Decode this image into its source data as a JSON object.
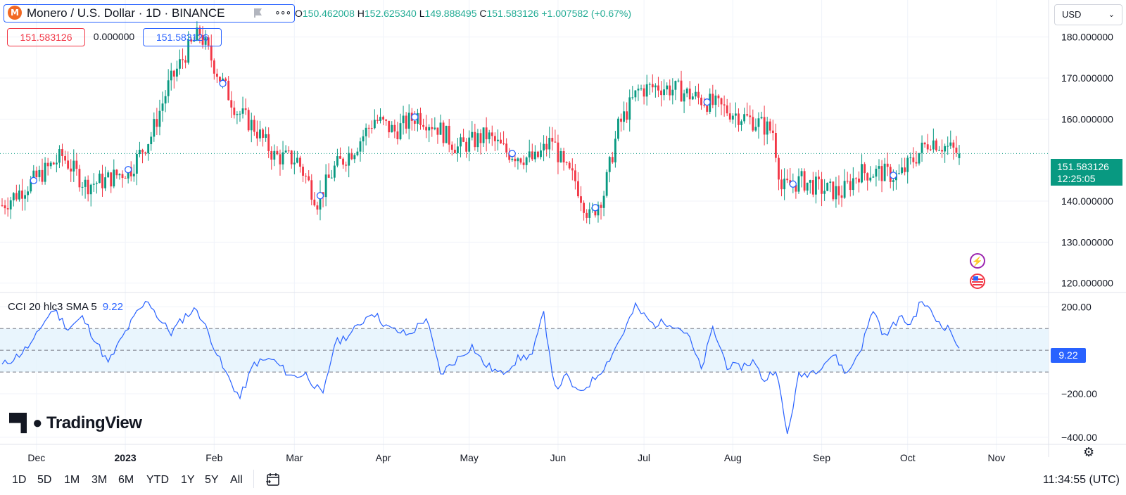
{
  "symbol": {
    "logo_letter": "M",
    "title": "Monero / U.S. Dollar · 1D · BINANCE",
    "open_label": "O",
    "open": "150.462008",
    "high_label": "H",
    "high": "152.625340",
    "low_label": "L",
    "low": "149.888495",
    "close_label": "C",
    "close": "151.583126",
    "change": "+1.007582 (+0.67%)"
  },
  "pills": {
    "sell": "151.583126",
    "spread": "0.000000",
    "buy": "151.583126"
  },
  "currency": {
    "label": "USD"
  },
  "last_price": {
    "price": "151.583126",
    "countdown": "12:25:05"
  },
  "indicator": {
    "name": "CCI 20 hlc3 SMA 5",
    "value": "9.22"
  },
  "logo_text": "TradingView",
  "ranges": [
    "1D",
    "5D",
    "1M",
    "3M",
    "6M",
    "YTD",
    "1Y",
    "5Y",
    "All"
  ],
  "clock": "11:34:55 (UTC)",
  "colors": {
    "up": "#089981",
    "down": "#f23645",
    "cci_line": "#2962ff",
    "cci_band": "#e3f2fd"
  },
  "icons": [
    "flag-icon",
    "more-icon",
    "chevron-down-icon",
    "lightning-icon",
    "us-flag-icon",
    "gear-icon",
    "calendar-icon"
  ],
  "chart_data": [
    {
      "type": "candlestick",
      "title": "Monero / U.S. Dollar · 1D · BINANCE",
      "y_ticks": [
        180,
        170,
        160,
        140,
        130,
        120
      ],
      "y_tick_labels": [
        "180.000000",
        "170.000000",
        "160.000000",
        "140.000000",
        "130.000000",
        "120.000000"
      ],
      "ylim": [
        118.4,
        188.0
      ],
      "x_ticks": [
        "Dec",
        "2023",
        "Feb",
        "Mar",
        "Apr",
        "May",
        "Jun",
        "Jul",
        "Aug",
        "Sep",
        "Oct",
        "Nov"
      ],
      "last_price_line": 151.583126,
      "anchors": [
        [
          "2022-11-19",
          139
        ],
        [
          "2022-11-30",
          145
        ],
        [
          "2022-12-10",
          151
        ],
        [
          "2022-12-18",
          144
        ],
        [
          "2022-12-25",
          145
        ],
        [
          "2023-01-03",
          148
        ],
        [
          "2023-01-10",
          156
        ],
        [
          "2023-01-16",
          168
        ],
        [
          "2023-01-22",
          176
        ],
        [
          "2023-01-27",
          181
        ],
        [
          "2023-02-03",
          170
        ],
        [
          "2023-02-09",
          162
        ],
        [
          "2023-02-15",
          158
        ],
        [
          "2023-02-22",
          151
        ],
        [
          "2023-03-02",
          150
        ],
        [
          "2023-03-09",
          140
        ],
        [
          "2023-03-15",
          148
        ],
        [
          "2023-03-22",
          153
        ],
        [
          "2023-03-29",
          160
        ],
        [
          "2023-04-05",
          157
        ],
        [
          "2023-04-13",
          161
        ],
        [
          "2023-04-20",
          158
        ],
        [
          "2023-04-27",
          153
        ],
        [
          "2023-05-07",
          156
        ],
        [
          "2023-05-14",
          152
        ],
        [
          "2023-05-24",
          150
        ],
        [
          "2023-05-30",
          155
        ],
        [
          "2023-06-03",
          148
        ],
        [
          "2023-06-07",
          145
        ],
        [
          "2023-06-12",
          136
        ],
        [
          "2023-06-17",
          142
        ],
        [
          "2023-06-22",
          158
        ],
        [
          "2023-06-29",
          167
        ],
        [
          "2023-07-06",
          168
        ],
        [
          "2023-07-13",
          167
        ],
        [
          "2023-07-20",
          165
        ],
        [
          "2023-07-27",
          163
        ],
        [
          "2023-08-03",
          161
        ],
        [
          "2023-08-10",
          159
        ],
        [
          "2023-08-15",
          157
        ],
        [
          "2023-08-18",
          143
        ],
        [
          "2023-08-25",
          145
        ],
        [
          "2023-09-01",
          143
        ],
        [
          "2023-09-08",
          142
        ],
        [
          "2023-09-14",
          147
        ],
        [
          "2023-09-21",
          147
        ],
        [
          "2023-09-28",
          146
        ],
        [
          "2023-10-04",
          151
        ],
        [
          "2023-10-09",
          155
        ],
        [
          "2023-10-15",
          153
        ],
        [
          "2023-10-19",
          151.58
        ]
      ],
      "markers": [
        "2022-11-30",
        "2023-01-02",
        "2023-02-04",
        "2023-03-10",
        "2023-04-12",
        "2023-05-16",
        "2023-06-14",
        "2023-07-23",
        "2023-08-22",
        "2023-09-26"
      ]
    },
    {
      "type": "line",
      "title": "CCI 20 hlc3 SMA 5",
      "y_ticks": [
        200,
        -200,
        -400
      ],
      "y_tick_labels": [
        "200.00",
        "−200.00",
        "−400.00"
      ],
      "ylim": [
        -420,
        240
      ],
      "band": [
        -100,
        100
      ],
      "midline": 0,
      "last_value": 9.22,
      "anchors": [
        [
          "2022-11-19",
          -70
        ],
        [
          "2022-11-25",
          -20
        ],
        [
          "2022-11-30",
          40
        ],
        [
          "2022-12-03",
          120
        ],
        [
          "2022-12-07",
          190
        ],
        [
          "2022-12-12",
          100
        ],
        [
          "2022-12-17",
          150
        ],
        [
          "2022-12-21",
          60
        ],
        [
          "2022-12-26",
          -60
        ],
        [
          "2022-12-31",
          60
        ],
        [
          "2023-01-05",
          170
        ],
        [
          "2023-01-09",
          230
        ],
        [
          "2023-01-13",
          140
        ],
        [
          "2023-01-17",
          80
        ],
        [
          "2023-01-22",
          160
        ],
        [
          "2023-01-26",
          190
        ],
        [
          "2023-01-31",
          50
        ],
        [
          "2023-02-04",
          -80
        ],
        [
          "2023-02-10",
          -220
        ],
        [
          "2023-02-15",
          -60
        ],
        [
          "2023-02-21",
          -40
        ],
        [
          "2023-02-28",
          -120
        ],
        [
          "2023-03-05",
          -110
        ],
        [
          "2023-03-11",
          -210
        ],
        [
          "2023-03-15",
          30
        ],
        [
          "2023-03-21",
          80
        ],
        [
          "2023-03-28",
          180
        ],
        [
          "2023-04-03",
          100
        ],
        [
          "2023-04-10",
          70
        ],
        [
          "2023-04-16",
          150
        ],
        [
          "2023-04-21",
          -110
        ],
        [
          "2023-04-26",
          -50
        ],
        [
          "2023-05-02",
          20
        ],
        [
          "2023-05-06",
          -60
        ],
        [
          "2023-05-12",
          -110
        ],
        [
          "2023-05-18",
          -40
        ],
        [
          "2023-05-23",
          -20
        ],
        [
          "2023-05-27",
          170
        ],
        [
          "2023-05-31",
          -180
        ],
        [
          "2023-06-04",
          -120
        ],
        [
          "2023-06-08",
          -200
        ],
        [
          "2023-06-13",
          -140
        ],
        [
          "2023-06-18",
          -60
        ],
        [
          "2023-06-23",
          60
        ],
        [
          "2023-06-28",
          200
        ],
        [
          "2023-07-04",
          120
        ],
        [
          "2023-07-10",
          130
        ],
        [
          "2023-07-16",
          80
        ],
        [
          "2023-07-21",
          -90
        ],
        [
          "2023-07-25",
          100
        ],
        [
          "2023-07-30",
          -70
        ],
        [
          "2023-08-03",
          -80
        ],
        [
          "2023-08-08",
          -50
        ],
        [
          "2023-08-12",
          -140
        ],
        [
          "2023-08-16",
          -80
        ],
        [
          "2023-08-20",
          -390
        ],
        [
          "2023-08-24",
          -120
        ],
        [
          "2023-08-30",
          -90
        ],
        [
          "2023-09-05",
          -20
        ],
        [
          "2023-09-10",
          -110
        ],
        [
          "2023-09-15",
          20
        ],
        [
          "2023-09-19",
          190
        ],
        [
          "2023-09-23",
          60
        ],
        [
          "2023-09-28",
          150
        ],
        [
          "2023-10-02",
          120
        ],
        [
          "2023-10-06",
          230
        ],
        [
          "2023-10-11",
          140
        ],
        [
          "2023-10-16",
          90
        ],
        [
          "2023-10-19",
          9.22
        ]
      ]
    }
  ]
}
